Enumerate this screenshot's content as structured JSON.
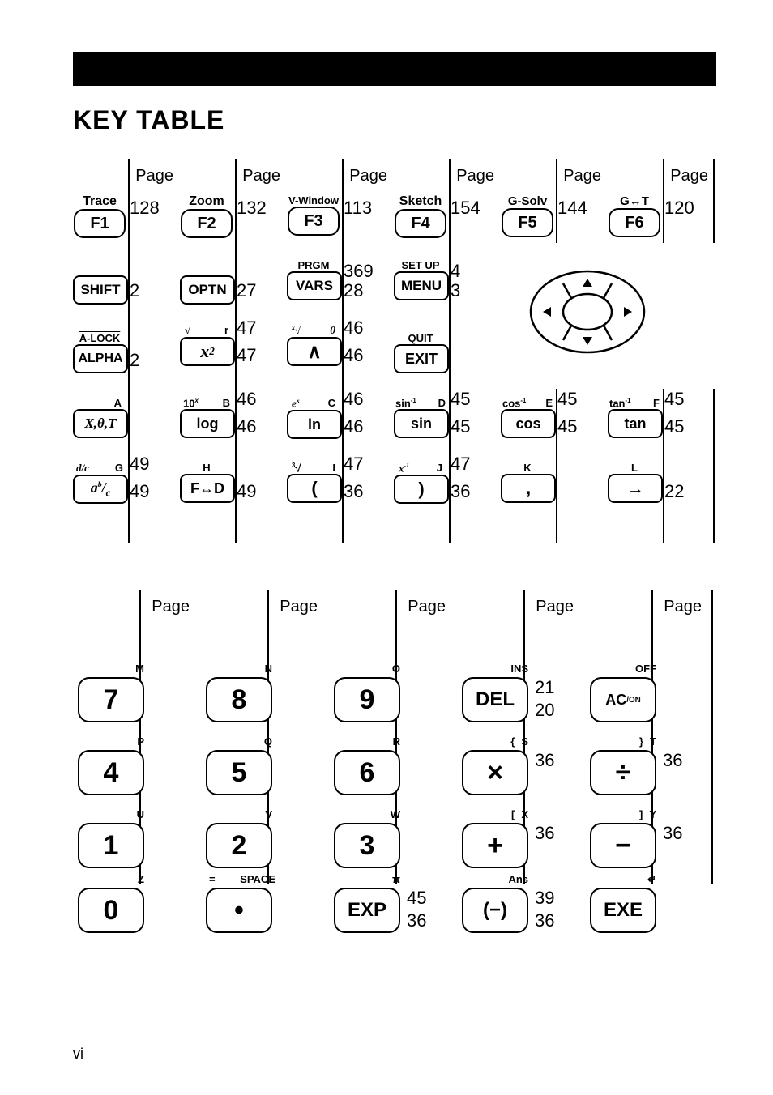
{
  "title": "KEY TABLE",
  "page_num": "vi",
  "headers": {
    "page": "Page"
  },
  "col1": {
    "r1": {
      "shift": "Trace",
      "key": "F1",
      "pg": "128"
    },
    "r2": {
      "key": "SHIFT",
      "pg": "2"
    },
    "r3": {
      "shift": "A-LOCK",
      "key": "ALPHA",
      "pg": "2"
    },
    "r4": {
      "alpha": "A",
      "key": "X,θ,T"
    },
    "r5": {
      "shiftL": "d/c",
      "alpha": "G",
      "key": "a b/c",
      "pg1": "49",
      "pg2": "49"
    }
  },
  "col2": {
    "r1": {
      "shift": "Zoom",
      "key": "F2",
      "pg": "132"
    },
    "r2": {
      "key": "OPTN",
      "pg": "27"
    },
    "r3": {
      "shiftL": "√",
      "alpha": "r",
      "key": "x²",
      "pg1": "47",
      "pg2": "47"
    },
    "r4": {
      "shiftL": "10ˣ",
      "alpha": "B",
      "key": "log",
      "pg1": "46",
      "pg2": "46"
    },
    "r5": {
      "alpha": "H",
      "key": "F↔D",
      "pg": "49"
    }
  },
  "col3": {
    "r1": {
      "shift": "V-Window",
      "key": "F3",
      "pg": "113"
    },
    "r2": {
      "shift": "PRGM",
      "key": "VARS",
      "pg1": "369",
      "pg2": "28"
    },
    "r3": {
      "shiftL": "ˣ√",
      "alpha": "θ",
      "key": "∧",
      "pg1": "46",
      "pg2": "46"
    },
    "r4": {
      "shiftL": "eˣ",
      "alpha": "C",
      "key": "ln",
      "pg1": "46",
      "pg2": "46"
    },
    "r5": {
      "shiftL": "³√",
      "alpha": "I",
      "key": "(",
      "pg1": "47",
      "pg2": "36"
    }
  },
  "col4": {
    "r1": {
      "shift": "Sketch",
      "key": "F4",
      "pg": "154"
    },
    "r2": {
      "shift": "SET UP",
      "key": "MENU",
      "pg1": "4",
      "pg2": "3"
    },
    "r3": {
      "shift": "QUIT",
      "key": "EXIT"
    },
    "r4": {
      "shiftL": "sin⁻¹",
      "alpha": "D",
      "key": "sin",
      "pg1": "45",
      "pg2": "45"
    },
    "r5": {
      "shiftL": "x⁻¹",
      "alpha": "J",
      "key": ")",
      "pg1": "47",
      "pg2": "36"
    }
  },
  "col5": {
    "r1": {
      "shift": "G-Solv",
      "key": "F5",
      "pg": "144"
    },
    "r4": {
      "shiftL": "cos⁻¹",
      "alpha": "E",
      "key": "cos",
      "pg1": "45",
      "pg2": "45"
    },
    "r5": {
      "alpha": "K",
      "key": ",",
      "pg": ""
    }
  },
  "col6": {
    "r1": {
      "shift": "G↔T",
      "key": "F6",
      "pg": "120"
    },
    "r4": {
      "shiftL": "tan⁻¹",
      "alpha": "F",
      "key": "tan",
      "pg1": "45",
      "pg2": "45"
    },
    "r5": {
      "alpha": "L",
      "key": "→",
      "pg": "22"
    }
  },
  "bottom": {
    "c1": {
      "k": [
        "7",
        "4",
        "1",
        "0"
      ],
      "a": [
        "M",
        "P",
        "U",
        "Z"
      ]
    },
    "c2": {
      "k": [
        "8",
        "5",
        "2",
        "•"
      ],
      "a": [
        "N",
        "Q",
        "V",
        "SPACE"
      ],
      "s4": "="
    },
    "c3": {
      "k": [
        "9",
        "6",
        "3",
        "EXP"
      ],
      "a": [
        "O",
        "R",
        "W",
        "π"
      ],
      "p4a": "45",
      "p4b": "36"
    },
    "c4": {
      "k": [
        "DEL",
        "×",
        "+",
        "(−)"
      ],
      "s": [
        "INS",
        "{",
        "[",
        "Ans"
      ],
      "a": [
        "",
        "S",
        "X",
        ""
      ],
      "p": [
        [
          "21",
          "20"
        ],
        [
          "36",
          ""
        ],
        [
          "36",
          ""
        ],
        [
          "39",
          "36"
        ]
      ]
    },
    "c5": {
      "k": [
        "AC/ON",
        "÷",
        "−",
        "EXE"
      ],
      "s": [
        "OFF",
        "}",
        "]",
        "↵"
      ],
      "a": [
        "",
        "T",
        "Y",
        ""
      ],
      "p": [
        [
          "",
          ""
        ],
        [
          "36",
          ""
        ],
        [
          "36",
          ""
        ],
        [
          "",
          ""
        ]
      ]
    }
  }
}
